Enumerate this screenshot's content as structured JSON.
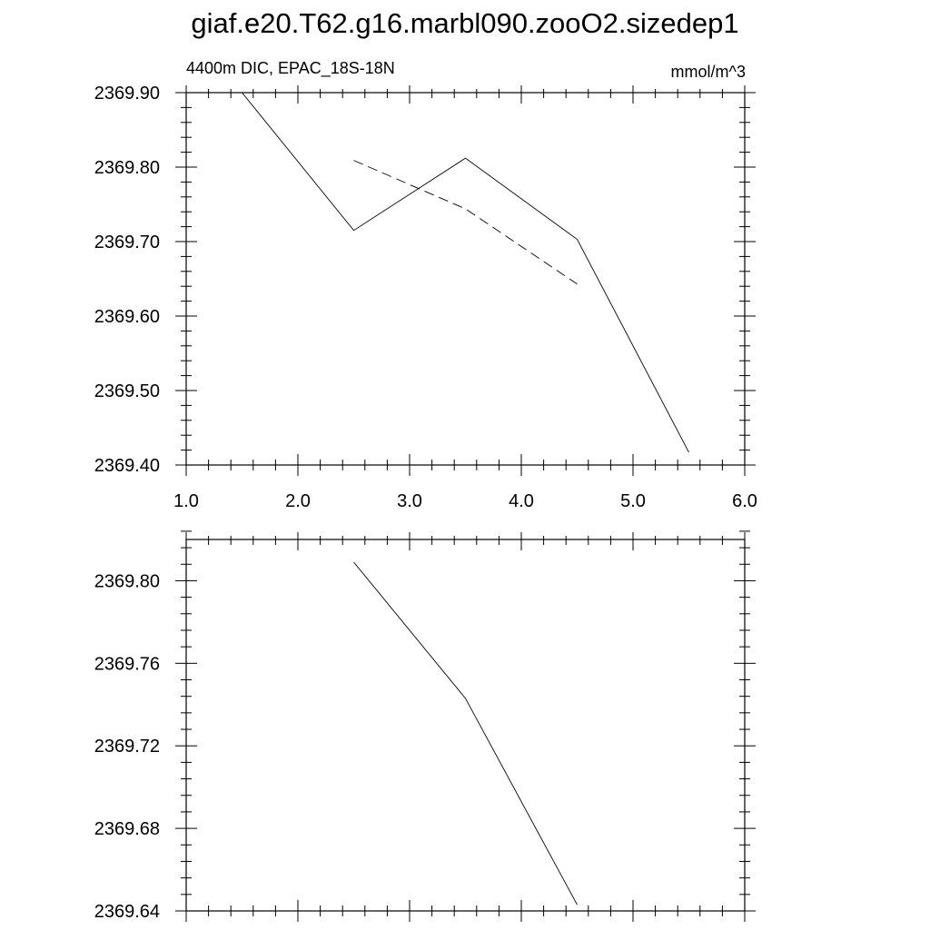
{
  "title": "giaf.e20.T62.g16.marbl090.zooO2.sizedep1",
  "chart_data": [
    {
      "type": "line",
      "subtitle_left": "4400m DIC, EPAC_18S-18N",
      "subtitle_right": "mmol/m^3",
      "xlim": [
        1.0,
        6.0
      ],
      "ylim": [
        2369.4,
        2369.9
      ],
      "xticks": [
        1.0,
        2.0,
        3.0,
        4.0,
        5.0,
        6.0
      ],
      "xtick_labels": [
        "1.0",
        "2.0",
        "3.0",
        "4.0",
        "5.0",
        "6.0"
      ],
      "yticks": [
        2369.4,
        2369.5,
        2369.6,
        2369.7,
        2369.8,
        2369.9
      ],
      "ytick_labels": [
        "2369.40",
        "2369.50",
        "2369.60",
        "2369.70",
        "2369.80",
        "2369.90"
      ],
      "grid": false,
      "series": [
        {
          "style": "solid",
          "x": [
            1.5,
            2.5,
            3.5,
            4.5,
            5.5
          ],
          "y": [
            2369.9,
            2369.715,
            2369.812,
            2369.703,
            2369.417
          ]
        },
        {
          "style": "dashed",
          "x": [
            2.5,
            3.5,
            4.5
          ],
          "y": [
            2369.809,
            2369.744,
            2369.643
          ]
        }
      ]
    },
    {
      "type": "line",
      "xlim": [
        1.0,
        6.0
      ],
      "ylim": [
        2369.64,
        2369.82
      ],
      "xticks": [
        1.0,
        2.0,
        3.0,
        4.0,
        5.0,
        6.0
      ],
      "xtick_labels": [],
      "yticks": [
        2369.64,
        2369.68,
        2369.72,
        2369.76,
        2369.8
      ],
      "ytick_labels": [
        "2369.64",
        "2369.68",
        "2369.72",
        "2369.76",
        "2369.80"
      ],
      "grid": false,
      "series": [
        {
          "style": "solid",
          "x": [
            2.5,
            3.5,
            4.5
          ],
          "y": [
            2369.809,
            2369.743,
            2369.643
          ]
        }
      ]
    }
  ]
}
